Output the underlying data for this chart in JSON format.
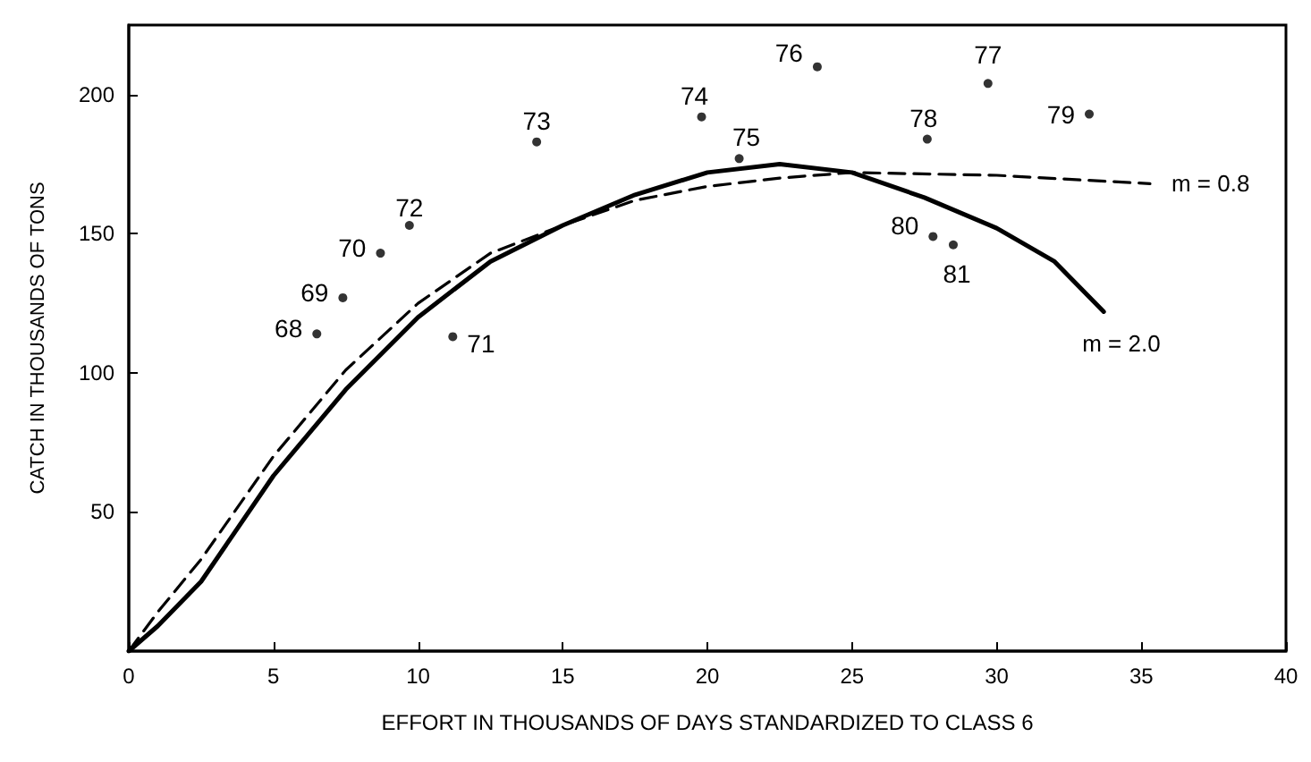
{
  "chart_data": {
    "type": "scatter",
    "xlabel": "EFFORT IN THOUSANDS OF DAYS STANDARDIZED TO CLASS 6",
    "ylabel": "CATCH IN THOUSANDS OF TONS",
    "xlim": [
      0,
      40
    ],
    "xticks": [
      0,
      5,
      10,
      15,
      20,
      25,
      30,
      35,
      40
    ],
    "ylim": [
      0,
      225
    ],
    "yticks": [
      50,
      100,
      150,
      200
    ],
    "grid": false,
    "legend": false,
    "series": [
      {
        "color": "#000000",
        "marker": "circle",
        "x": [
          6.5,
          7.4,
          8.7,
          9.7,
          11.2,
          14.1,
          19.8,
          21.1,
          23.8,
          29.7,
          27.6,
          33.2,
          27.8,
          28.5
        ],
        "values": [
          114,
          127,
          143,
          153,
          113,
          183,
          192,
          177,
          210,
          204,
          184,
          193,
          149,
          146
        ]
      },
      {
        "type": "line",
        "name": "m = 2.0",
        "color": "#000000",
        "marker": "none",
        "line_style": "solid",
        "x": [
          0,
          1,
          2.5,
          5,
          7.5,
          10,
          12.5,
          15,
          17.5,
          20,
          22.5,
          25,
          27.5,
          30,
          32,
          33.7
        ],
        "values": [
          0,
          9,
          25,
          63,
          94,
          120,
          140,
          153,
          164,
          172,
          175,
          172,
          163,
          152,
          140,
          122
        ]
      },
      {
        "type": "line",
        "name": "m = 0.8",
        "color": "#000000",
        "marker": "none",
        "line_style": "dashed",
        "x": [
          0,
          1,
          2.5,
          5,
          7.5,
          10,
          12.5,
          15,
          17.5,
          20,
          22.5,
          25,
          30,
          35.3
        ],
        "values": [
          0,
          14,
          33,
          70,
          101,
          125,
          143,
          153,
          162,
          167,
          170,
          172,
          171,
          168
        ]
      }
    ],
    "annotations": [
      {
        "text": "68",
        "x": 6.5,
        "y": 114
      },
      {
        "text": "69",
        "x": 7.4,
        "y": 127
      },
      {
        "text": "70",
        "x": 8.7,
        "y": 143
      },
      {
        "text": "72",
        "x": 9.7,
        "y": 153
      },
      {
        "text": "71",
        "x": 11.2,
        "y": 113
      },
      {
        "text": "73",
        "x": 14.1,
        "y": 183
      },
      {
        "text": "74",
        "x": 19.8,
        "y": 192
      },
      {
        "text": "75",
        "x": 21.1,
        "y": 177
      },
      {
        "text": "76",
        "x": 23.8,
        "y": 210
      },
      {
        "text": "77",
        "x": 29.7,
        "y": 204
      },
      {
        "text": "78",
        "x": 27.6,
        "y": 184
      },
      {
        "text": "79",
        "x": 33.2,
        "y": 193
      },
      {
        "text": "80",
        "x": 27.8,
        "y": 149
      },
      {
        "text": "81",
        "x": 28.5,
        "y": 146
      }
    ]
  }
}
